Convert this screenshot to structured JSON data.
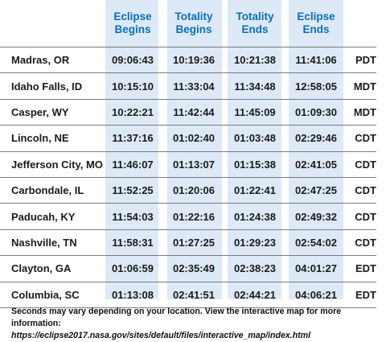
{
  "table": {
    "columns": [
      "",
      "Eclipse\nBegins",
      "Totality\nBegins",
      "Totality\nEnds",
      "Eclipse\nEnds",
      ""
    ],
    "header_lines": [
      [
        "Eclipse",
        "Begins"
      ],
      [
        "Totality",
        "Begins"
      ],
      [
        "Totality",
        "Ends"
      ],
      [
        "Eclipse",
        "Ends"
      ]
    ],
    "rows": [
      {
        "city": "Madras, OR",
        "eclipse_begins": "09:06:43",
        "totality_begins": "10:19:36",
        "totality_ends": "10:21:38",
        "eclipse_ends": "11:41:06",
        "tz": "PDT"
      },
      {
        "city": "Idaho Falls, ID",
        "eclipse_begins": "10:15:10",
        "totality_begins": "11:33:04",
        "totality_ends": "11:34:48",
        "eclipse_ends": "12:58:05",
        "tz": "MDT"
      },
      {
        "city": "Casper, WY",
        "eclipse_begins": "10:22:21",
        "totality_begins": "11:42:44",
        "totality_ends": "11:45:09",
        "eclipse_ends": "01:09:30",
        "tz": "MDT"
      },
      {
        "city": "Lincoln, NE",
        "eclipse_begins": "11:37:16",
        "totality_begins": "01:02:40",
        "totality_ends": "01:03:48",
        "eclipse_ends": "02:29:46",
        "tz": "CDT"
      },
      {
        "city": "Jefferson City, MO",
        "eclipse_begins": "11:46:07",
        "totality_begins": "01:13:07",
        "totality_ends": "01:15:38",
        "eclipse_ends": "02:41:05",
        "tz": "CDT"
      },
      {
        "city": "Carbondale, IL",
        "eclipse_begins": "11:52:25",
        "totality_begins": "01:20:06",
        "totality_ends": "01:22:41",
        "eclipse_ends": "02:47:25",
        "tz": "CDT"
      },
      {
        "city": "Paducah, KY",
        "eclipse_begins": "11:54:03",
        "totality_begins": "01:22:16",
        "totality_ends": "01:24:38",
        "eclipse_ends": "02:49:32",
        "tz": "CDT"
      },
      {
        "city": "Nashville, TN",
        "eclipse_begins": "11:58:31",
        "totality_begins": "01:27:25",
        "totality_ends": "01:29:23",
        "eclipse_ends": "02:54:02",
        "tz": "CDT"
      },
      {
        "city": "Clayton, GA",
        "eclipse_begins": "01:06:59",
        "totality_begins": "02:35:49",
        "totality_ends": "02:38:23",
        "eclipse_ends": "04:01:27",
        "tz": "EDT"
      },
      {
        "city": "Columbia, SC",
        "eclipse_begins": "01:13:08",
        "totality_begins": "02:41:51",
        "totality_ends": "02:44:21",
        "eclipse_ends": "04:06:21",
        "tz": "EDT"
      }
    ]
  },
  "footer": {
    "note": "Seconds may vary depending on your location. View the interactive map for more information:",
    "url": "https://eclipse2017.nasa.gov/sites/default/files/interactive_map/index.html"
  },
  "colors": {
    "header_text": "#0a6fbf",
    "column_highlight": "#dde9f6",
    "row_divider": "#7a7a7a"
  }
}
